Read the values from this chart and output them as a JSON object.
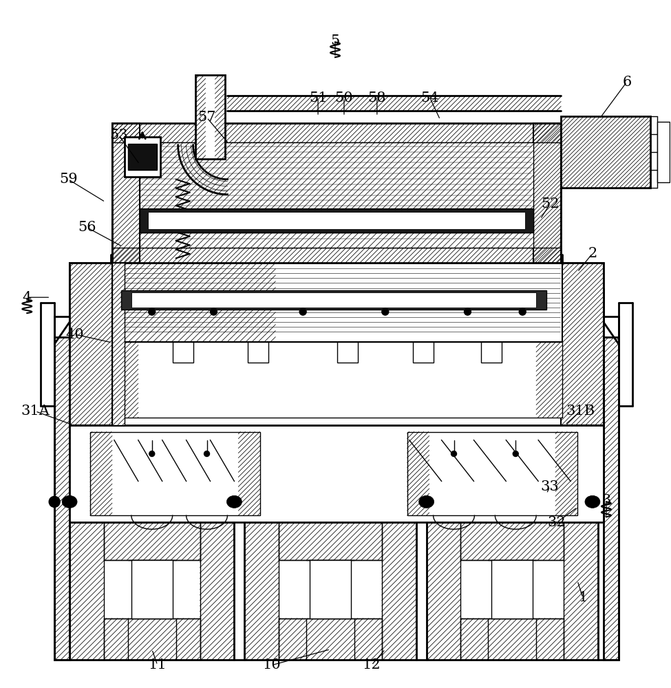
{
  "background_color": "#ffffff",
  "line_color": "#000000",
  "figsize": [
    9.75,
    10.0
  ],
  "dpi": 100,
  "labels": [
    [
      "1",
      848,
      870,
      840,
      845
    ],
    [
      "2",
      862,
      368,
      840,
      395
    ],
    [
      "3",
      882,
      728,
      882,
      752
    ],
    [
      "4",
      38,
      432,
      72,
      432
    ],
    [
      "5",
      487,
      58,
      487,
      82
    ],
    [
      "6",
      912,
      118,
      872,
      172
    ],
    [
      "10",
      395,
      968,
      480,
      945
    ],
    [
      "11",
      228,
      968,
      220,
      945
    ],
    [
      "12",
      540,
      968,
      560,
      945
    ],
    [
      "31A",
      50,
      598,
      105,
      618
    ],
    [
      "31B",
      844,
      598,
      822,
      618
    ],
    [
      "32",
      810,
      760,
      840,
      738
    ],
    [
      "33",
      800,
      708,
      795,
      718
    ],
    [
      "40",
      108,
      486,
      162,
      498
    ],
    [
      "50",
      500,
      141,
      500,
      168
    ],
    [
      "51",
      462,
      141,
      462,
      168
    ],
    [
      "52",
      800,
      296,
      786,
      318
    ],
    [
      "53",
      172,
      196,
      202,
      238
    ],
    [
      "54",
      625,
      141,
      640,
      173
    ],
    [
      "56",
      125,
      330,
      177,
      358
    ],
    [
      "57",
      300,
      170,
      332,
      208
    ],
    [
      "58",
      548,
      141,
      548,
      168
    ],
    [
      "59",
      98,
      260,
      152,
      293
    ]
  ]
}
